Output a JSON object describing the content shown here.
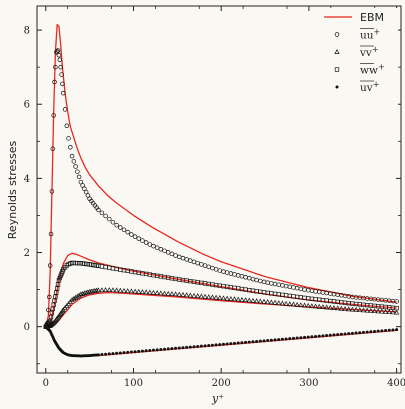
{
  "chart_data": {
    "type": "line",
    "title": "",
    "xlabel": "y⁺",
    "ylabel": "Reynolds stresses",
    "xlim": [
      -10,
      405
    ],
    "ylim": [
      -1.25,
      8.65
    ],
    "xticks": [
      0,
      100,
      200,
      300,
      400
    ],
    "yticks": [
      0,
      2,
      4,
      6,
      8
    ],
    "grid": false,
    "legend_position": "top-right",
    "colors": {
      "ebm": "#e8271f",
      "markers": "#111111",
      "background": "#faf8f3"
    },
    "legend": [
      {
        "label": "EBM",
        "kind": "line"
      },
      {
        "label": "uu",
        "kind": "circle"
      },
      {
        "label": "vv",
        "kind": "triangle"
      },
      {
        "label": "ww",
        "kind": "square"
      },
      {
        "label": "uv",
        "kind": "dot"
      }
    ],
    "ebm_series": [
      {
        "name": "EBM uu",
        "x": [
          0,
          3,
          5,
          7,
          9,
          11,
          13,
          15,
          17,
          19,
          22,
          25,
          28,
          32,
          36,
          40,
          45,
          50,
          60,
          70,
          80,
          100,
          120,
          150,
          180,
          200,
          250,
          300,
          350,
          400
        ],
        "y": [
          0,
          0.3,
          1.5,
          3.6,
          5.8,
          7.4,
          8.15,
          8.1,
          7.6,
          7.0,
          6.3,
          5.8,
          5.4,
          5.1,
          4.8,
          4.55,
          4.3,
          4.1,
          3.8,
          3.55,
          3.35,
          3.0,
          2.7,
          2.3,
          1.95,
          1.75,
          1.35,
          1.05,
          0.82,
          0.66
        ]
      },
      {
        "name": "EBM ww",
        "x": [
          0,
          5,
          10,
          15,
          20,
          25,
          30,
          35,
          40,
          50,
          60,
          80,
          100,
          150,
          200,
          250,
          300,
          350,
          400
        ],
        "y": [
          0,
          0.1,
          0.6,
          1.25,
          1.7,
          1.92,
          1.98,
          1.95,
          1.9,
          1.8,
          1.72,
          1.6,
          1.5,
          1.28,
          1.08,
          0.88,
          0.72,
          0.6,
          0.5
        ]
      },
      {
        "name": "EBM vv",
        "x": [
          0,
          5,
          10,
          15,
          20,
          30,
          40,
          50,
          60,
          70,
          80,
          100,
          150,
          200,
          250,
          300,
          350,
          400
        ],
        "y": [
          0,
          0.01,
          0.06,
          0.17,
          0.32,
          0.6,
          0.77,
          0.86,
          0.9,
          0.92,
          0.91,
          0.88,
          0.8,
          0.7,
          0.61,
          0.53,
          0.46,
          0.4
        ]
      },
      {
        "name": "EBM uv",
        "x": [
          0,
          5,
          10,
          15,
          20,
          25,
          30,
          40,
          50,
          60,
          80,
          100,
          150,
          200,
          250,
          300,
          350,
          400
        ],
        "y": [
          0,
          -0.1,
          -0.35,
          -0.57,
          -0.7,
          -0.76,
          -0.79,
          -0.8,
          -0.79,
          -0.78,
          -0.74,
          -0.7,
          -0.6,
          -0.5,
          -0.4,
          -0.3,
          -0.2,
          -0.1
        ]
      }
    ],
    "marker_series": [
      {
        "name": "uu",
        "marker": "circle",
        "x": [
          0,
          2,
          4,
          6,
          8,
          10,
          12,
          14,
          16,
          18,
          20,
          25,
          30,
          40,
          50,
          60,
          80,
          100,
          120,
          150,
          200,
          250,
          300,
          350,
          400
        ],
        "y": [
          0,
          0.1,
          0.8,
          2.5,
          4.8,
          6.6,
          7.4,
          7.45,
          7.2,
          6.8,
          6.3,
          5.2,
          4.6,
          3.9,
          3.45,
          3.15,
          2.75,
          2.45,
          2.2,
          1.9,
          1.5,
          1.2,
          0.98,
          0.8,
          0.68
        ]
      },
      {
        "name": "ww",
        "marker": "square",
        "x": [
          0,
          5,
          10,
          15,
          20,
          25,
          30,
          40,
          50,
          60,
          80,
          100,
          150,
          200,
          250,
          300,
          350,
          400
        ],
        "y": [
          0,
          0.15,
          0.7,
          1.25,
          1.55,
          1.68,
          1.72,
          1.71,
          1.68,
          1.64,
          1.56,
          1.48,
          1.28,
          1.1,
          0.92,
          0.76,
          0.62,
          0.5
        ]
      },
      {
        "name": "vv",
        "marker": "triangle",
        "x": [
          0,
          5,
          10,
          15,
          20,
          30,
          40,
          50,
          60,
          70,
          80,
          100,
          150,
          200,
          250,
          300,
          350,
          400
        ],
        "y": [
          0,
          0.02,
          0.12,
          0.28,
          0.45,
          0.72,
          0.87,
          0.94,
          0.98,
          0.99,
          0.98,
          0.95,
          0.87,
          0.77,
          0.67,
          0.56,
          0.46,
          0.38
        ]
      },
      {
        "name": "uv",
        "marker": "dot",
        "x": [
          0,
          5,
          10,
          15,
          20,
          25,
          30,
          40,
          50,
          60,
          80,
          100,
          150,
          200,
          250,
          300,
          350,
          400
        ],
        "y": [
          0,
          -0.12,
          -0.38,
          -0.58,
          -0.7,
          -0.76,
          -0.78,
          -0.79,
          -0.78,
          -0.76,
          -0.72,
          -0.68,
          -0.58,
          -0.48,
          -0.38,
          -0.28,
          -0.18,
          -0.08
        ]
      }
    ]
  }
}
